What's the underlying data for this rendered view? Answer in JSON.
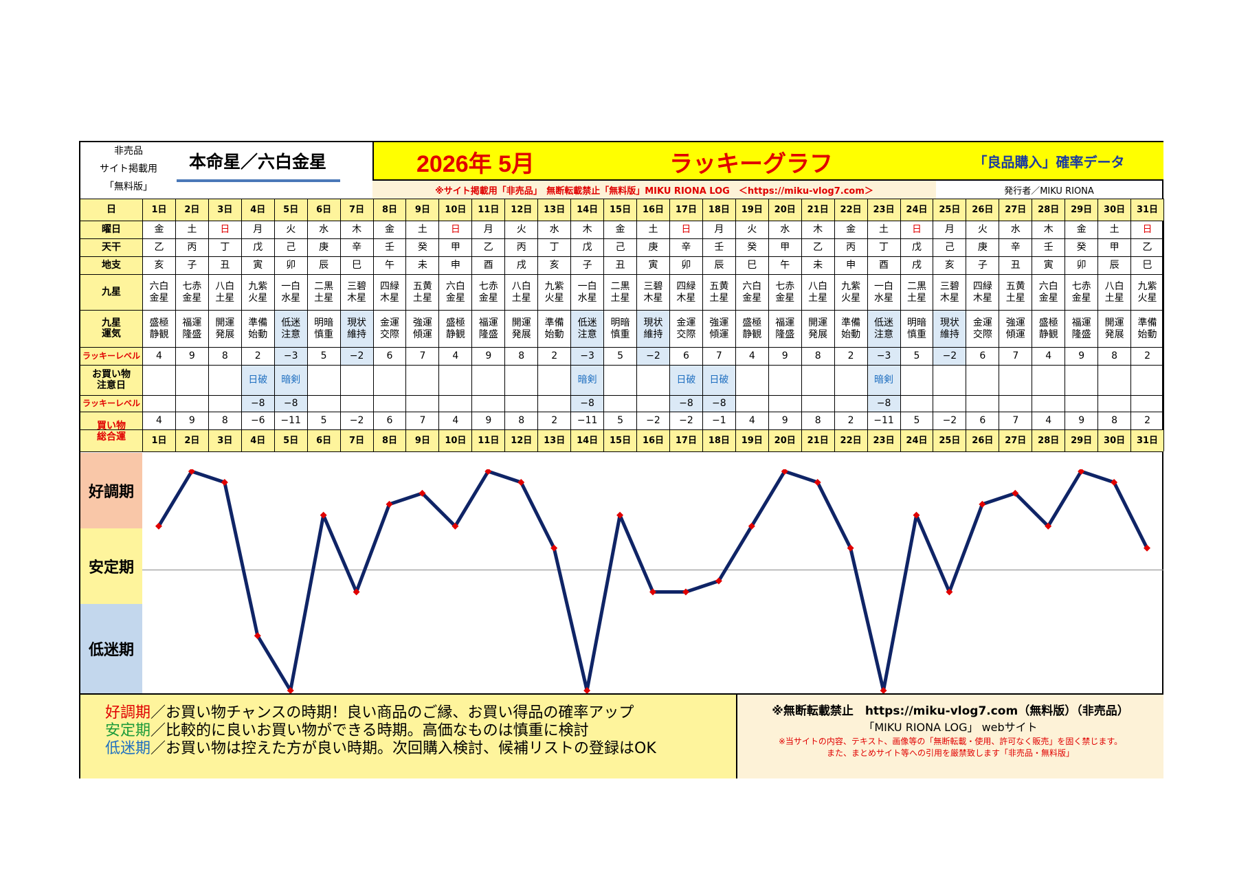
{
  "header": {
    "nonsale": [
      "非売品",
      "サイト掲載用",
      "「無料版」"
    ],
    "honmei": "本命星／六白金星",
    "year_month": "2026年 5月",
    "title": "ラッキーグラフ",
    "right_title": "「良品購入」確率データ",
    "notice": "※サイト掲載用「非売品」　無断転載禁止「無料版」MIKU RIONA LOG　＜https://miku-vlog7.com＞",
    "publisher": "発行者／MIKU RIONA"
  },
  "row_labels": {
    "day": "日",
    "weekday": "曜日",
    "tenkan": "天干",
    "chishi": "地支",
    "kyusei": "九星",
    "kyusei_unki": [
      "九星",
      "運気"
    ],
    "lucky_level": "ラッキーレベル",
    "shopping_caution": [
      "お買い物",
      "注意日"
    ],
    "lucky_level2": "ラッキーレベル",
    "total": [
      "買い物",
      "総合運"
    ]
  },
  "days": [
    "1日",
    "2日",
    "3日",
    "4日",
    "5日",
    "6日",
    "7日",
    "8日",
    "9日",
    "10日",
    "11日",
    "12日",
    "13日",
    "14日",
    "15日",
    "16日",
    "17日",
    "18日",
    "19日",
    "20日",
    "21日",
    "22日",
    "23日",
    "24日",
    "25日",
    "26日",
    "27日",
    "28日",
    "29日",
    "30日",
    "31日"
  ],
  "weekdays": [
    "金",
    "土",
    "日",
    "月",
    "火",
    "水",
    "木",
    "金",
    "土",
    "日",
    "月",
    "火",
    "水",
    "木",
    "金",
    "土",
    "日",
    "月",
    "火",
    "水",
    "木",
    "金",
    "土",
    "日",
    "月",
    "火",
    "水",
    "木",
    "金",
    "土",
    "日"
  ],
  "tenkan": [
    "乙",
    "丙",
    "丁",
    "戊",
    "己",
    "庚",
    "辛",
    "壬",
    "癸",
    "甲",
    "乙",
    "丙",
    "丁",
    "戊",
    "己",
    "庚",
    "辛",
    "壬",
    "癸",
    "甲",
    "乙",
    "丙",
    "丁",
    "戊",
    "己",
    "庚",
    "辛",
    "壬",
    "癸",
    "甲",
    "乙"
  ],
  "chishi": [
    "亥",
    "子",
    "丑",
    "寅",
    "卯",
    "辰",
    "巳",
    "午",
    "未",
    "申",
    "酉",
    "戌",
    "亥",
    "子",
    "丑",
    "寅",
    "卯",
    "辰",
    "巳",
    "午",
    "未",
    "申",
    "酉",
    "戌",
    "亥",
    "子",
    "丑",
    "寅",
    "卯",
    "辰",
    "巳"
  ],
  "kyusei": [
    [
      "六白",
      "金星"
    ],
    [
      "七赤",
      "金星"
    ],
    [
      "八白",
      "土星"
    ],
    [
      "九紫",
      "火星"
    ],
    [
      "一白",
      "水星"
    ],
    [
      "二黒",
      "土星"
    ],
    [
      "三碧",
      "木星"
    ],
    [
      "四緑",
      "木星"
    ],
    [
      "五黄",
      "土星"
    ],
    [
      "六白",
      "金星"
    ],
    [
      "七赤",
      "金星"
    ],
    [
      "八白",
      "土星"
    ],
    [
      "九紫",
      "火星"
    ],
    [
      "一白",
      "水星"
    ],
    [
      "二黒",
      "土星"
    ],
    [
      "三碧",
      "木星"
    ],
    [
      "四緑",
      "木星"
    ],
    [
      "五黄",
      "土星"
    ],
    [
      "六白",
      "金星"
    ],
    [
      "七赤",
      "金星"
    ],
    [
      "八白",
      "土星"
    ],
    [
      "九紫",
      "火星"
    ],
    [
      "一白",
      "水星"
    ],
    [
      "二黒",
      "土星"
    ],
    [
      "三碧",
      "木星"
    ],
    [
      "四緑",
      "木星"
    ],
    [
      "五黄",
      "土星"
    ],
    [
      "六白",
      "金星"
    ],
    [
      "七赤",
      "金星"
    ],
    [
      "八白",
      "土星"
    ],
    [
      "九紫",
      "火星"
    ]
  ],
  "unki": [
    [
      "盛極",
      "静観"
    ],
    [
      "福運",
      "隆盛"
    ],
    [
      "開運",
      "発展"
    ],
    [
      "準備",
      "始動"
    ],
    [
      "低迷",
      "注意"
    ],
    [
      "明暗",
      "慎重"
    ],
    [
      "現状",
      "維持"
    ],
    [
      "金運",
      "交際"
    ],
    [
      "強運",
      "傾運"
    ],
    [
      "盛極",
      "静観"
    ],
    [
      "福運",
      "隆盛"
    ],
    [
      "開運",
      "発展"
    ],
    [
      "準備",
      "始動"
    ],
    [
      "低迷",
      "注意"
    ],
    [
      "明暗",
      "慎重"
    ],
    [
      "現状",
      "維持"
    ],
    [
      "金運",
      "交際"
    ],
    [
      "強運",
      "傾運"
    ],
    [
      "盛極",
      "静観"
    ],
    [
      "福運",
      "隆盛"
    ],
    [
      "開運",
      "発展"
    ],
    [
      "準備",
      "始動"
    ],
    [
      "低迷",
      "注意"
    ],
    [
      "明暗",
      "慎重"
    ],
    [
      "現状",
      "維持"
    ],
    [
      "金運",
      "交際"
    ],
    [
      "強運",
      "傾運"
    ],
    [
      "盛極",
      "静観"
    ],
    [
      "福運",
      "隆盛"
    ],
    [
      "開運",
      "発展"
    ],
    [
      "準備",
      "始動"
    ]
  ],
  "lucky_level": [
    "4",
    "9",
    "8",
    "2",
    "−3",
    "5",
    "−2",
    "6",
    "7",
    "4",
    "9",
    "8",
    "2",
    "−3",
    "5",
    "−2",
    "6",
    "7",
    "4",
    "9",
    "8",
    "2",
    "−3",
    "5",
    "−2",
    "6",
    "7",
    "4",
    "9",
    "8",
    "2"
  ],
  "caution": [
    "",
    "",
    "",
    "日破",
    "暗剣",
    "",
    "",
    "",
    "",
    "",
    "",
    "",
    "",
    "暗剣",
    "",
    "",
    "日破",
    "日破",
    "",
    "",
    "",
    "",
    "暗剣",
    "",
    "",
    "",
    "",
    "",
    "",
    "",
    ""
  ],
  "caution_level": [
    "",
    "",
    "",
    "−8",
    "−8",
    "",
    "",
    "",
    "",
    "",
    "",
    "",
    "",
    "−8",
    "",
    "",
    "−8",
    "−8",
    "",
    "",
    "",
    "",
    "−8",
    "",
    "",
    "",
    "",
    "",
    "",
    "",
    ""
  ],
  "total": [
    "4",
    "9",
    "8",
    "−6",
    "−11",
    "5",
    "−2",
    "6",
    "7",
    "4",
    "9",
    "8",
    "2",
    "−11",
    "5",
    "−2",
    "−2",
    "−1",
    "4",
    "9",
    "8",
    "2",
    "−11",
    "5",
    "−2",
    "6",
    "7",
    "4",
    "9",
    "8",
    "2"
  ],
  "zones": {
    "good": "好調期",
    "stable": "安定期",
    "low": "低迷期"
  },
  "legend": {
    "good_term": "好調期",
    "good_text": "／お買い物チャンスの時期！良い商品のご縁、お買い得品の確率アップ",
    "stable_term": "安定期",
    "stable_text": "／比較的に良いお買い物ができる時期。高価なものは慎重に検討",
    "low_term": "低迷期",
    "low_text": "／お買い物は控えた方が良い時期。次回購入検討、候補リストの登録はOK",
    "colors": {
      "good": "#e00000",
      "stable": "#1a9a3a",
      "low": "#1f6fc0"
    }
  },
  "notice_box": {
    "line1": "※無断転載禁止　https://miku-vlog7.com（無料版）（非売品）",
    "line2": "「MIKU RIONA LOG」 webサイト",
    "line3": "※当サイトの内容、テキスト、画像等の「無断転載・使用、許可なく販売」を固く禁じます。",
    "line4": "また、まとめサイト等への引用を厳禁致します「非売品・無料版」"
  },
  "chart_data": {
    "type": "line",
    "x": [
      "1日",
      "2日",
      "3日",
      "4日",
      "5日",
      "6日",
      "7日",
      "8日",
      "9日",
      "10日",
      "11日",
      "12日",
      "13日",
      "14日",
      "15日",
      "16日",
      "17日",
      "18日",
      "19日",
      "20日",
      "21日",
      "22日",
      "23日",
      "24日",
      "25日",
      "26日",
      "27日",
      "28日",
      "29日",
      "30日",
      "31日"
    ],
    "series": [
      {
        "values": [
          4,
          9,
          8,
          -6,
          -11,
          5,
          -2,
          6,
          7,
          4,
          9,
          8,
          2,
          -11,
          5,
          -2,
          -2,
          -1,
          4,
          9,
          8,
          2,
          -11,
          5,
          -2,
          6,
          7,
          4,
          9,
          8,
          2
        ]
      }
    ],
    "ylim": [
      -11,
      9
    ],
    "stable_line_value": 0,
    "line_color": "#0f2466",
    "marker_color": "#e00000",
    "grid": false
  }
}
